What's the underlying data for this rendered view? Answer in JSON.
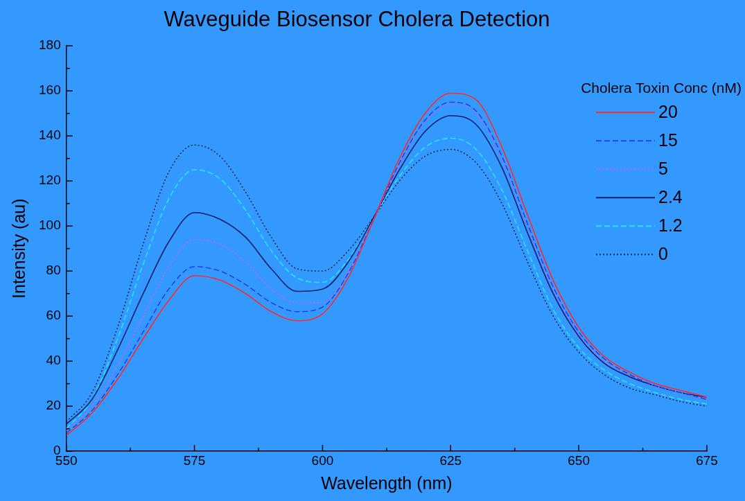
{
  "chart_data": {
    "type": "line",
    "title": "Waveguide Biosensor Cholera Detection",
    "xlabel": "Wavelength (nm)",
    "ylabel": "Intensity (au)",
    "legend_title": "Cholera Toxin Conc (nM)",
    "x": [
      550,
      555,
      560,
      565,
      570,
      575,
      580,
      585,
      590,
      595,
      600,
      605,
      610,
      615,
      620,
      625,
      630,
      635,
      640,
      645,
      650,
      655,
      660,
      665,
      670,
      675
    ],
    "series": [
      {
        "name": "20",
        "color": "#ff2a2a",
        "line_style": "solid",
        "values": [
          7,
          17,
          32,
          50,
          67,
          78,
          76,
          70,
          62,
          58,
          61,
          77,
          103,
          130,
          150,
          159,
          156,
          135,
          105,
          76,
          55,
          42,
          35,
          30,
          27,
          24
        ]
      },
      {
        "name": "15",
        "color": "#2244ee",
        "line_style": "dashed",
        "values": [
          8,
          18,
          34,
          53,
          72,
          82,
          80,
          74,
          66,
          62,
          64,
          79,
          103,
          128,
          147,
          155,
          151,
          131,
          101,
          73,
          53,
          41,
          34,
          29,
          26,
          23
        ]
      },
      {
        "name": "5",
        "color": "#dd55ff",
        "line_style": "dotted",
        "values": [
          9,
          20,
          38,
          60,
          82,
          94,
          92,
          84,
          72,
          66,
          66,
          80,
          103,
          127,
          146,
          154,
          150,
          130,
          100,
          72,
          52,
          40,
          34,
          29,
          26,
          23
        ]
      },
      {
        "name": "2.4",
        "color": "#0a1f6b",
        "line_style": "solid",
        "values": [
          12,
          23,
          45,
          70,
          93,
          106,
          103,
          95,
          81,
          71,
          72,
          84,
          104,
          125,
          142,
          149,
          145,
          126,
          97,
          70,
          51,
          39,
          33,
          29,
          26,
          24
        ]
      },
      {
        "name": "1.2",
        "color": "#22e6ff",
        "line_style": "dashed",
        "values": [
          10,
          23,
          50,
          83,
          112,
          125,
          121,
          107,
          89,
          77,
          75,
          85,
          104,
          122,
          135,
          139,
          134,
          116,
          89,
          63,
          46,
          36,
          30,
          26,
          23,
          21
        ]
      },
      {
        "name": "0",
        "color": "#1a2a44",
        "line_style": "dotted",
        "values": [
          13,
          26,
          55,
          92,
          124,
          136,
          131,
          115,
          95,
          81,
          80,
          89,
          104,
          120,
          131,
          134,
          128,
          110,
          84,
          60,
          44,
          34,
          28,
          25,
          22,
          20
        ]
      }
    ],
    "xlim": [
      550,
      675
    ],
    "xticks": [
      550,
      {
        "value": 562.5,
        "label": null
      },
      575,
      {
        "value": 587.5,
        "label": null
      },
      600,
      {
        "value": 612.5,
        "label": null
      },
      625,
      {
        "value": 637.5,
        "label": null
      },
      650,
      {
        "value": 662.5,
        "label": null
      },
      675
    ],
    "ylim": [
      0,
      180
    ],
    "yticks": [
      0,
      {
        "value": 10,
        "label": null
      },
      20,
      {
        "value": 30,
        "label": null
      },
      40,
      {
        "value": 50,
        "label": null
      },
      60,
      {
        "value": 70,
        "label": null
      },
      80,
      {
        "value": 90,
        "label": null
      },
      100,
      {
        "value": 110,
        "label": null
      },
      120,
      {
        "value": 130,
        "label": null
      },
      140,
      {
        "value": 150,
        "label": null
      },
      160,
      {
        "value": 170,
        "label": null
      },
      180
    ],
    "grid": false,
    "legend": "top right",
    "marker": "none"
  }
}
